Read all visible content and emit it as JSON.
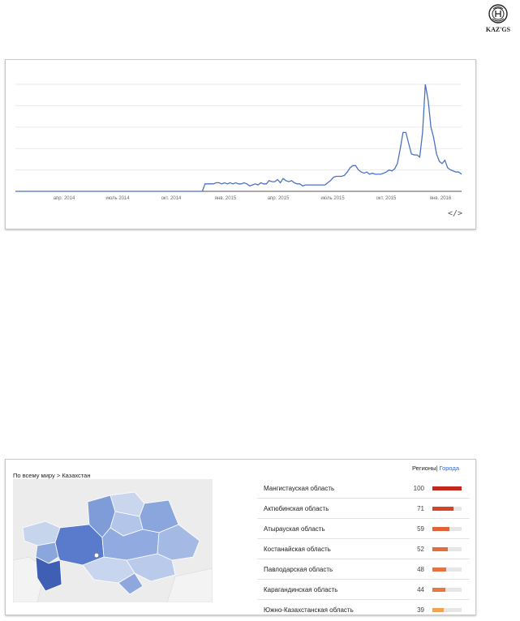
{
  "logo": {
    "text": "KAZ'GS",
    "icon": "seal-emblem-icon"
  },
  "trend": {
    "x_labels": [
      "апр. 2014",
      "июль 2014",
      "окт. 2014",
      "янв. 2015",
      "апр. 2015",
      "июль 2015",
      "окт. 2015",
      "янв. 2016"
    ],
    "embed_icon": "code-embed-icon",
    "embed_label": "</>",
    "line_color": "#4a72c4"
  },
  "chart_data": {
    "type": "line",
    "title": "",
    "xlabel": "",
    "ylabel": "",
    "x_start": "2014-01",
    "x_end": "2016-02",
    "ylim": [
      0,
      100
    ],
    "grid": true,
    "series": [
      {
        "values": [
          0,
          0,
          0,
          0,
          0,
          0,
          0,
          0,
          0,
          0,
          0,
          0,
          0,
          0,
          0,
          0,
          0,
          0,
          0,
          0,
          0,
          0,
          0,
          0,
          0,
          0,
          0,
          0,
          0,
          0,
          0,
          0,
          0,
          0,
          0,
          0,
          0,
          0,
          0,
          0,
          0,
          0,
          0,
          0,
          0,
          0,
          0,
          0,
          0,
          0,
          0,
          0,
          0,
          0,
          0,
          0,
          0,
          0,
          0,
          0,
          0,
          0,
          0,
          0,
          0,
          0,
          0,
          0,
          7,
          7,
          7,
          7,
          8,
          8,
          7,
          8,
          7,
          8,
          7,
          8,
          7,
          7,
          8,
          7,
          5,
          6,
          7,
          6,
          8,
          7,
          7,
          10,
          9,
          9,
          11,
          8,
          12,
          10,
          9,
          10,
          8,
          7,
          7,
          5,
          6,
          6,
          6,
          6,
          6,
          6,
          6,
          6,
          8,
          10,
          13,
          14,
          14,
          14,
          15,
          18,
          22,
          24,
          24,
          20,
          18,
          17,
          18,
          16,
          17,
          16,
          16,
          16,
          17,
          18,
          20,
          19,
          21,
          26,
          40,
          55,
          55,
          45,
          35,
          34,
          34,
          32,
          55,
          100,
          85,
          60,
          50,
          35,
          28,
          26,
          29,
          22,
          20,
          19,
          18,
          18,
          16
        ]
      }
    ]
  },
  "regions": {
    "breadcrumb_root": "По всему миру",
    "breadcrumb_sep": ">",
    "breadcrumb_current": "Казахстан",
    "toggle_regions": "Регионы",
    "toggle_sep": "|",
    "toggle_cities": "Города",
    "items": [
      {
        "name": "Мангистауская область",
        "value": 100,
        "color": "#c0291c"
      },
      {
        "name": "Актюбинская область",
        "value": 71,
        "color": "#d5432a"
      },
      {
        "name": "Атырауская область",
        "value": 59,
        "color": "#e2633a"
      },
      {
        "name": "Костанайская область",
        "value": 52,
        "color": "#e36c3c"
      },
      {
        "name": "Павлодарская область",
        "value": 48,
        "color": "#e67442"
      },
      {
        "name": "Карагандинская область",
        "value": 44,
        "color": "#e67845"
      },
      {
        "name": "Южно-Казахстанская область",
        "value": 39,
        "color": "#f0a453"
      }
    ]
  }
}
